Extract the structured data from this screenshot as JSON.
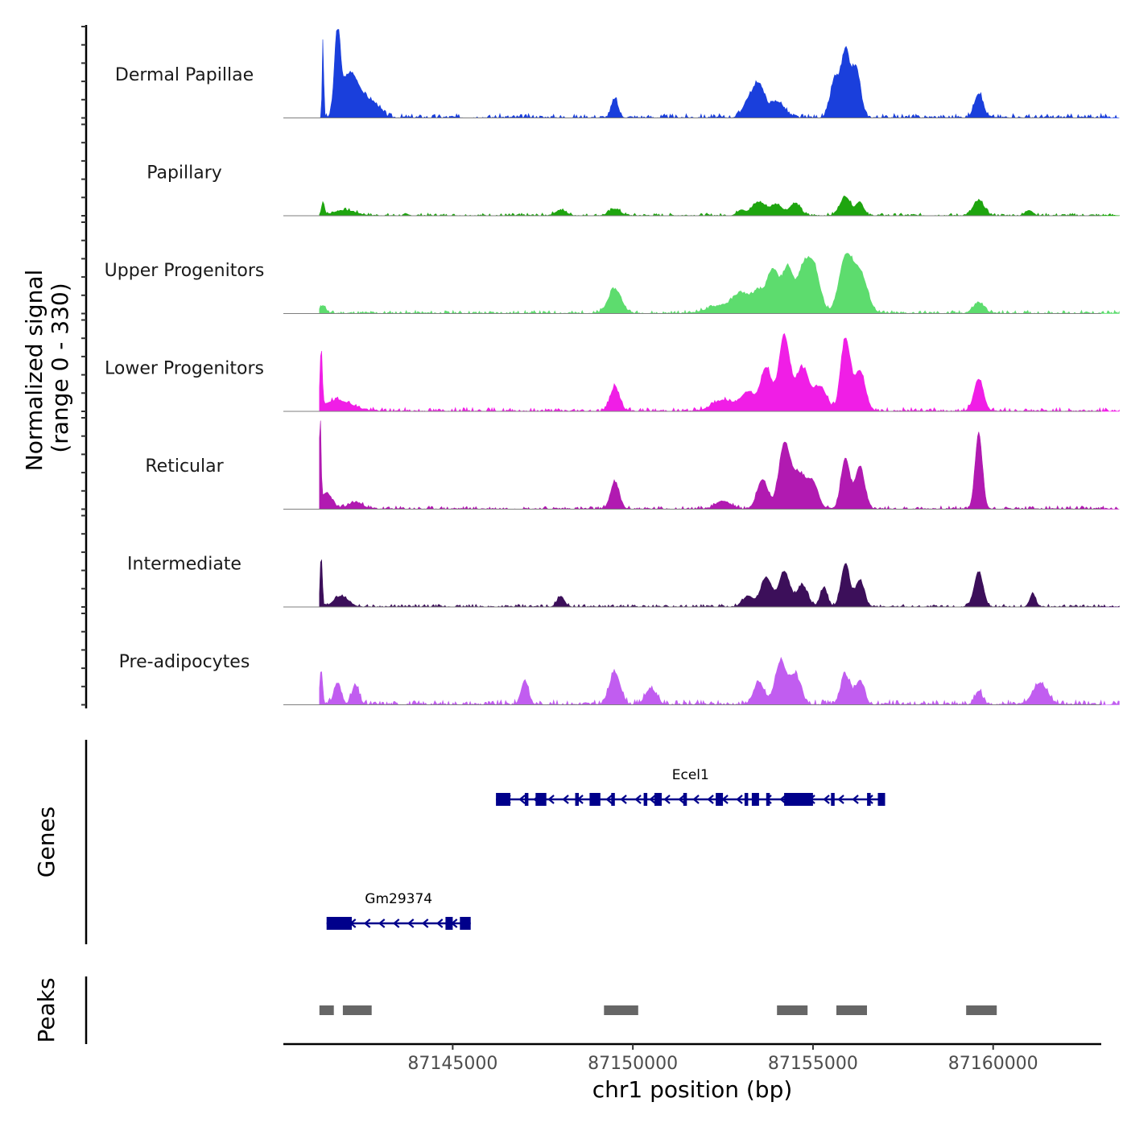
{
  "chart_data": {
    "type": "area",
    "title": "",
    "chromosome": "chr1",
    "xlabel": "chr1 position (bp)",
    "ylabel_line1": "Normalized signal",
    "ylabel_line2": "(range 0 - 330)",
    "signal_range": [
      0,
      330
    ],
    "xlim": [
      87140300,
      87163000
    ],
    "xticks": [
      87145000,
      87150000,
      87155000,
      87160000
    ],
    "xtick_labels": [
      "87145000",
      "87150000",
      "87155000",
      "87160000"
    ],
    "data_start": 87141300,
    "data_end": 87163500,
    "tracks": [
      {
        "name": "Dermal Papillae",
        "color": "#1a3fdc",
        "peaks": [
          [
            87141400,
            20,
            300
          ],
          [
            87141800,
            80,
            300
          ],
          [
            87142100,
            200,
            140
          ],
          [
            87142400,
            200,
            70
          ],
          [
            87142800,
            200,
            50
          ],
          [
            87149500,
            90,
            70
          ],
          [
            87153200,
            150,
            60
          ],
          [
            87153500,
            150,
            120
          ],
          [
            87154000,
            200,
            60
          ],
          [
            87155600,
            120,
            140
          ],
          [
            87155900,
            120,
            240
          ],
          [
            87156200,
            120,
            180
          ],
          [
            87159600,
            120,
            90
          ]
        ],
        "noise": 16,
        "seed": 3
      },
      {
        "name": "Papillary",
        "color": "#1ea50f",
        "peaks": [
          [
            87141400,
            40,
            50
          ],
          [
            87142000,
            300,
            20
          ],
          [
            87148000,
            150,
            20
          ],
          [
            87149500,
            150,
            25
          ],
          [
            87153000,
            100,
            20
          ],
          [
            87153500,
            200,
            50
          ],
          [
            87154000,
            150,
            40
          ],
          [
            87154500,
            150,
            45
          ],
          [
            87155900,
            150,
            70
          ],
          [
            87156300,
            100,
            50
          ],
          [
            87159600,
            150,
            55
          ],
          [
            87161000,
            100,
            20
          ]
        ],
        "noise": 10,
        "seed": 7
      },
      {
        "name": "Upper Progenitors",
        "color": "#5ddc6e",
        "peaks": [
          [
            87141400,
            80,
            30
          ],
          [
            87149500,
            180,
            90
          ],
          [
            87152500,
            400,
            30
          ],
          [
            87153000,
            200,
            60
          ],
          [
            87153500,
            200,
            80
          ],
          [
            87153900,
            150,
            150
          ],
          [
            87154300,
            150,
            170
          ],
          [
            87154700,
            150,
            130
          ],
          [
            87155000,
            180,
            180
          ],
          [
            87155900,
            180,
            200
          ],
          [
            87156300,
            200,
            150
          ],
          [
            87159600,
            150,
            40
          ]
        ],
        "noise": 12,
        "seed": 11
      },
      {
        "name": "Lower Progenitors",
        "color": "#f01ee6",
        "peaks": [
          [
            87141350,
            30,
            220
          ],
          [
            87141800,
            400,
            40
          ],
          [
            87149500,
            130,
            90
          ],
          [
            87152500,
            300,
            40
          ],
          [
            87153200,
            200,
            70
          ],
          [
            87153700,
            150,
            160
          ],
          [
            87154200,
            150,
            280
          ],
          [
            87154700,
            180,
            160
          ],
          [
            87155200,
            180,
            90
          ],
          [
            87155900,
            130,
            270
          ],
          [
            87156300,
            150,
            150
          ],
          [
            87159600,
            130,
            120
          ]
        ],
        "noise": 14,
        "seed": 19
      },
      {
        "name": "Reticular",
        "color": "#b11ab1",
        "peaks": [
          [
            87141320,
            25,
            330
          ],
          [
            87141500,
            150,
            60
          ],
          [
            87142300,
            200,
            25
          ],
          [
            87149500,
            120,
            100
          ],
          [
            87152500,
            200,
            30
          ],
          [
            87153600,
            150,
            110
          ],
          [
            87154200,
            150,
            230
          ],
          [
            87154600,
            200,
            130
          ],
          [
            87155000,
            150,
            90
          ],
          [
            87155900,
            120,
            190
          ],
          [
            87156300,
            130,
            160
          ],
          [
            87159600,
            100,
            280
          ]
        ],
        "noise": 12,
        "seed": 23
      },
      {
        "name": "Intermediate",
        "color": "#3c0f5a",
        "peaks": [
          [
            87141350,
            30,
            190
          ],
          [
            87141900,
            200,
            40
          ],
          [
            87148000,
            100,
            40
          ],
          [
            87153200,
            150,
            40
          ],
          [
            87153700,
            150,
            110
          ],
          [
            87154200,
            150,
            130
          ],
          [
            87154700,
            150,
            80
          ],
          [
            87155300,
            100,
            70
          ],
          [
            87155900,
            120,
            160
          ],
          [
            87156300,
            120,
            100
          ],
          [
            87159600,
            120,
            130
          ],
          [
            87161100,
            80,
            50
          ]
        ],
        "noise": 10,
        "seed": 29
      },
      {
        "name": "Pre-adipocytes",
        "color": "#c15df0",
        "peaks": [
          [
            87141350,
            40,
            130
          ],
          [
            87141800,
            100,
            80
          ],
          [
            87142300,
            100,
            70
          ],
          [
            87147000,
            100,
            90
          ],
          [
            87149500,
            150,
            120
          ],
          [
            87150500,
            150,
            60
          ],
          [
            87153500,
            150,
            80
          ],
          [
            87154100,
            150,
            160
          ],
          [
            87154500,
            150,
            110
          ],
          [
            87155900,
            130,
            110
          ],
          [
            87156300,
            120,
            90
          ],
          [
            87159600,
            100,
            50
          ],
          [
            87161300,
            200,
            80
          ]
        ],
        "noise": 18,
        "seed": 31
      }
    ],
    "genes_label": "Genes",
    "genes": [
      {
        "name": "Ecel1",
        "start": 87146200,
        "end": 87155100,
        "strand": "-",
        "exons": [
          [
            87146200,
            87146600
          ],
          [
            87147000,
            87147100
          ],
          [
            87147300,
            87147600
          ],
          [
            87148400,
            87148500
          ],
          [
            87148800,
            87149100
          ],
          [
            87149400,
            87149500
          ],
          [
            87150300,
            87150400
          ],
          [
            87150600,
            87150800
          ],
          [
            87151400,
            87151500
          ],
          [
            87152300,
            87152500
          ],
          [
            87153100,
            87153200
          ],
          [
            87153300,
            87153500
          ],
          [
            87153700,
            87153800
          ],
          [
            87154200,
            87155000
          ],
          [
            87155500,
            87155600
          ],
          [
            87156500,
            87156600
          ],
          [
            87156800,
            87157000
          ]
        ],
        "display_start": 87146200,
        "display_end": 87157000
      },
      {
        "name": "Gm29374",
        "start": 87141500,
        "end": 87145400,
        "strand": "-",
        "exons": [
          [
            87141500,
            87142200
          ],
          [
            87144800,
            87145000
          ],
          [
            87145200,
            87145500
          ]
        ],
        "display_start": 87141500,
        "display_end": 87145500
      }
    ],
    "peaks_label": "Peaks",
    "peaks": [
      [
        87141300,
        87141700
      ],
      [
        87141950,
        87142750
      ],
      [
        87149200,
        87150150
      ],
      [
        87154000,
        87154850
      ],
      [
        87155650,
        87156500
      ],
      [
        87159250,
        87160100
      ]
    ]
  }
}
